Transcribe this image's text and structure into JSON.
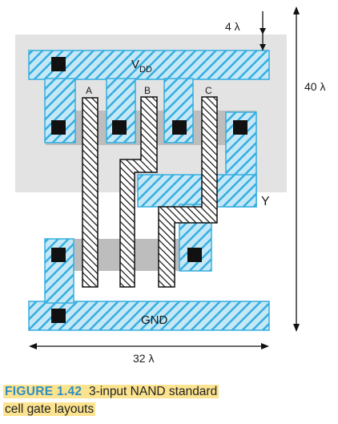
{
  "diagram": {
    "labels": {
      "vdd_main": "V",
      "vdd_sub": "DD",
      "gnd": "GND",
      "input_a": "A",
      "input_b": "B",
      "input_c": "C",
      "output_y": "Y"
    },
    "dimensions": {
      "top_margin": "4 λ",
      "height": "40 λ",
      "width": "32 λ"
    }
  },
  "caption": {
    "figure_id": "FIGURE 1.42",
    "text_line1": "3-input NAND standard",
    "text_line2": "cell gate layouts"
  },
  "colors": {
    "metal": "#35aee0",
    "metal_fill": "#c6e8f6",
    "nwell": "#e3e3e3",
    "diffusion": "#bdbdbd",
    "contact": "#111111",
    "caption_highlight": "#fbe38f",
    "figure_id": "#2f8ec1"
  }
}
